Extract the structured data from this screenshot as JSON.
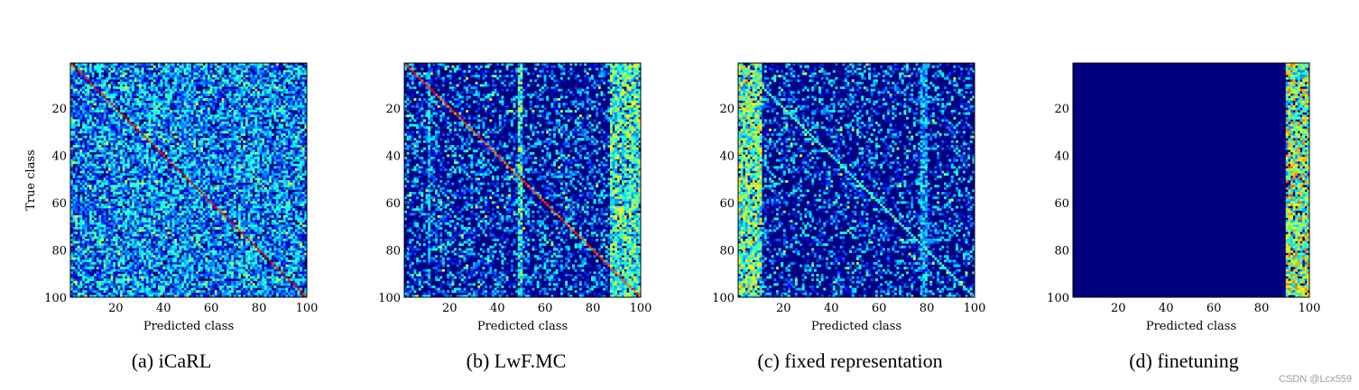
{
  "chart_data": [
    {
      "type": "heatmap",
      "title": "",
      "caption": "(a) iCaRL",
      "xlabel": "Predicted class",
      "ylabel": "True class",
      "xticks": [
        20,
        40,
        60,
        80,
        100
      ],
      "yticks": [
        20,
        40,
        60,
        80,
        100
      ],
      "xlim": [
        1,
        100
      ],
      "ylim": [
        1,
        100
      ],
      "grid": false,
      "pattern": "strong diagonal with uniform off-diagonal noise",
      "colormap": "jet",
      "background": "#00007f",
      "diagonal_value": 0.95,
      "noise_density": 0.75,
      "noise_level": 0.35,
      "stripes": []
    },
    {
      "type": "heatmap",
      "title": "",
      "caption": "(b) LwF.MC",
      "xlabel": "Predicted class",
      "ylabel": "",
      "xticks": [
        20,
        40,
        60,
        80,
        100
      ],
      "yticks": [
        20,
        40,
        60,
        80,
        100
      ],
      "xlim": [
        1,
        100
      ],
      "ylim": [
        1,
        100
      ],
      "grid": false,
      "pattern": "diagonal, sparser noise, bias toward recent classes (90-100)",
      "colormap": "jet",
      "background": "#00007f",
      "diagonal_value": 0.85,
      "noise_density": 0.35,
      "noise_level": 0.3,
      "stripes": [
        {
          "from": 11,
          "to": 11,
          "value": 0.35
        },
        {
          "from": 49,
          "to": 50,
          "value": 0.45
        },
        {
          "from": 88,
          "to": 100,
          "value": 0.5
        }
      ]
    },
    {
      "type": "heatmap",
      "title": "",
      "caption": "(c) fixed representation",
      "xlabel": "Predicted class",
      "ylabel": "",
      "xticks": [
        20,
        40,
        60,
        80,
        100
      ],
      "yticks": [
        20,
        40,
        60,
        80,
        100
      ],
      "xlim": [
        1,
        100
      ],
      "ylim": [
        1,
        100
      ],
      "grid": false,
      "pattern": "bias toward first classes (1-10), faint diagonal",
      "colormap": "jet",
      "background": "#00007f",
      "diagonal_value": 0.45,
      "noise_density": 0.3,
      "noise_level": 0.3,
      "stripes": [
        {
          "from": 1,
          "to": 10,
          "value": 0.55
        },
        {
          "from": 78,
          "to": 80,
          "value": 0.35
        }
      ]
    },
    {
      "type": "heatmap",
      "title": "",
      "caption": "(d) finetuning",
      "xlabel": "Predicted class",
      "ylabel": "",
      "xticks": [
        20,
        40,
        60,
        80,
        100
      ],
      "yticks": [
        20,
        40,
        60,
        80,
        100
      ],
      "xlim": [
        1,
        100
      ],
      "ylim": [
        1,
        100
      ],
      "grid": false,
      "pattern": "all predictions in last classes (91-100)",
      "colormap": "jet",
      "background": "#00007f",
      "diagonal_value": 0,
      "noise_density": 0,
      "noise_level": 0,
      "stripes": [
        {
          "from": 91,
          "to": 100,
          "value": 0.6
        }
      ]
    }
  ],
  "watermark": "CSDN @Lcx559"
}
